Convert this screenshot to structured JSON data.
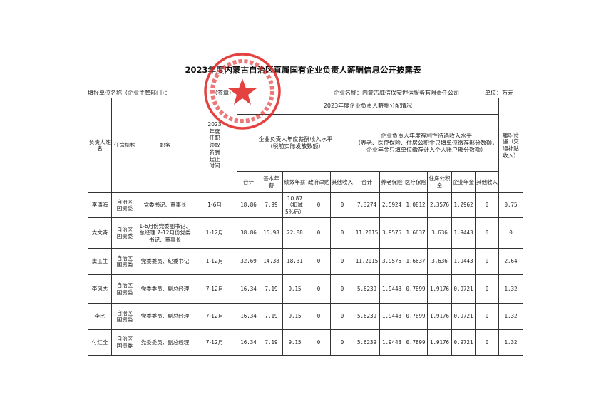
{
  "title": "2023年度内蒙古自治区直属国有企业负责人薪酬信息公开披露表",
  "filler_label": "填报单位名称（企业主管部门）：",
  "signature_label": "（签章）",
  "company": "企业名称：内蒙古威信保安押运服务有限责任公司",
  "unit": "单位：万元",
  "stamp": {
    "text": "内蒙古威信保安押运服务有限责任公司",
    "color": "#e02020"
  },
  "headers": {
    "name": "负责人姓 名",
    "org": "任命机构",
    "duty": "职务",
    "period": "2023年度任职领取薪酬起止时间",
    "distribution": "2023年度企业负责人薪酬分配情况",
    "salary_group": "企业负责人年度薪酬收入水平",
    "salary_note": "（税前实际发放数额）",
    "welfare_group": "企业负责人年度福利性待遇收入水平",
    "welfare_note": "（养老、医疗保险、住房公积金只填单位缴存部分数额，企业年金只填单位缴存计入个人账户部分数额）",
    "duty_benefit": "履职待遇（交通补贴收入）",
    "salary_cols": [
      "合计",
      "基本年薪",
      "绩效年薪",
      "政府津贴",
      "其他收入"
    ],
    "welfare_cols": [
      "合计",
      "养老保险",
      "医疗保险",
      "住房公积金",
      "企业年金",
      "其他收入"
    ]
  },
  "rows": [
    {
      "name": "李涛海",
      "org": "自治区国资委",
      "duty": "党委书记、董事长",
      "period": "1-6月",
      "s_total": "18.86",
      "s_base": "7.99",
      "s_perf": "10.87（扣减5%后）",
      "s_gov": "0",
      "s_other": "0",
      "w_total": "7.3274",
      "w_pension": "2.5924",
      "w_medical": "1.0812",
      "w_housing": "2.3576",
      "w_annuity": "1.2962",
      "w_other": "0",
      "benefit": "0.75"
    },
    {
      "name": "支文奇",
      "org": "自治区国资委",
      "duty": "1-6月份党委副书记、总经理 7-12月份党委书记、董事长",
      "period": "1-12月",
      "s_total": "38.86",
      "s_base": "15.98",
      "s_perf": "22.88",
      "s_gov": "0",
      "s_other": "0",
      "w_total": "11.2015",
      "w_pension": "3.9575",
      "w_medical": "1.6637",
      "w_housing": "3.636",
      "w_annuity": "1.9443",
      "w_other": "0",
      "benefit": "0"
    },
    {
      "name": "窦玉生",
      "org": "自治区国资委",
      "duty": "党委委员、纪委书记",
      "period": "1-12月",
      "s_total": "32.69",
      "s_base": "14.38",
      "s_perf": "18.31",
      "s_gov": "0",
      "s_other": "0",
      "w_total": "11.2015",
      "w_pension": "3.9575",
      "w_medical": "1.6637",
      "w_housing": "3.636",
      "w_annuity": "1.9443",
      "w_other": "0",
      "benefit": "2.64"
    },
    {
      "name": "李风杰",
      "org": "自治区国资委",
      "duty": "党委委员、副总经理",
      "period": "7-12月",
      "s_total": "16.34",
      "s_base": "7.19",
      "s_perf": "9.15",
      "s_gov": "0",
      "s_other": "0",
      "w_total": "5.6239",
      "w_pension": "1.9443",
      "w_medical": "0.7899",
      "w_housing": "1.9176",
      "w_annuity": "0.9721",
      "w_other": "0",
      "benefit": "1.32"
    },
    {
      "name": "李民",
      "org": "自治区国资委",
      "duty": "党委委员、副总经理",
      "period": "7-12月",
      "s_total": "16.34",
      "s_base": "7.19",
      "s_perf": "9.15",
      "s_gov": "0",
      "s_other": "0",
      "w_total": "5.6239",
      "w_pension": "1.9443",
      "w_medical": "0.7899",
      "w_housing": "1.9176",
      "w_annuity": "0.9721",
      "w_other": "0",
      "benefit": "1.32"
    },
    {
      "name": "付红全",
      "org": "自治区国资委",
      "duty": "党委委员、副总经理",
      "period": "7-12月",
      "s_total": "16.34",
      "s_base": "7.19",
      "s_perf": "9.15",
      "s_gov": "0",
      "s_other": "0",
      "w_total": "5.6239",
      "w_pension": "1.9443",
      "w_medical": "0.7899",
      "w_housing": "1.9176",
      "w_annuity": "0.9721",
      "w_other": "0",
      "benefit": "1.32"
    }
  ]
}
